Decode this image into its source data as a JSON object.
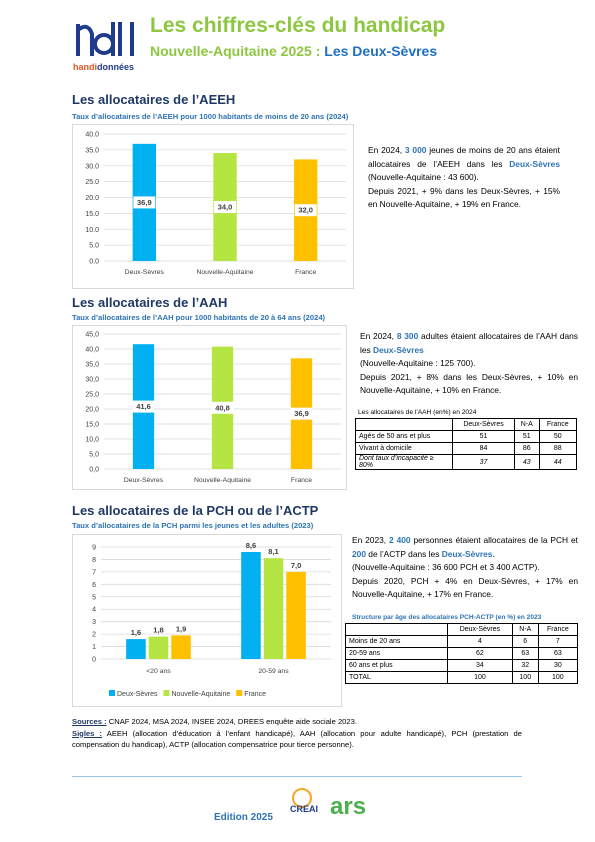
{
  "header": {
    "logo": [
      "handi",
      "données"
    ],
    "title": "Les chiffres-clés du handicap",
    "subtitle": [
      "Nouvelle-Aquitaine 2025 : ",
      "Les Deux-Sèvres"
    ]
  },
  "sections": [
    {
      "heading": "Les allocataires de l’AEEH",
      "text": [
        "En 2024, ",
        "3 000",
        " jeunes de moins de 20 ans étaient allocataires de l’AEEH dans les ",
        "Deux-Sèvres",
        " (Nouvelle-Aquitaine : 43 600).",
        "Depuis 2021, + 9% dans les Deux-Sèvres, + 15% en Nouvelle-Aquitaine, + 19% en France."
      ]
    },
    {
      "heading": "Les allocataires de l’AAH",
      "text": [
        "En 2024, ",
        "8 300",
        " adultes étaient allocataires de l’AAH dans les ",
        "Deux-Sèvres",
        "(Nouvelle-Aquitaine : 125 700).",
        "Depuis 2021, + 8% dans les Deux-Sèvres, + 10% en Nouvelle-Aquitaine, + 10% en France."
      ]
    },
    {
      "heading": "Les allocataires de la PCH ou de l’ACTP",
      "text": [
        "En 2023, ",
        "2 400",
        " personnes étaient allocataires de la PCH et ",
        "200",
        " de l’ACTP dans les ",
        "Deux-Sèvres.",
        "(Nouvelle-Aquitaine : 36 600 PCH et 3 400 ACTP).",
        "Depuis 2020, PCH + 4% en Deux-Sèvres, + 17% en Nouvelle-Aquitaine, + 17% en France."
      ]
    }
  ],
  "chart_data": [
    {
      "type": "bar",
      "title": "Taux d’allocataires de l’AEEH pour 1000 habitants de moins de 20 ans (2024)",
      "categories": [
        "Deux-Sèvres",
        "Nouvelle-Aquitaine",
        "France"
      ],
      "values": [
        36.9,
        34.0,
        32.0
      ],
      "value_labels": [
        "36,9",
        "34,0",
        "32,0"
      ],
      "colors": [
        "#00b0f0",
        "#b5e543",
        "#ffc000"
      ],
      "ylim": [
        0,
        40
      ],
      "yticks": [
        {
          "value": 0,
          "label": "0.0"
        },
        {
          "value": 5,
          "label": "5.0"
        },
        {
          "value": 10,
          "label": "10.0"
        },
        {
          "value": 15,
          "label": "15.0"
        },
        {
          "value": 20,
          "label": "20.0"
        },
        {
          "value": 25,
          "label": "25.0"
        },
        {
          "value": 30,
          "label": "30.0"
        },
        {
          "value": 35,
          "label": "35.0"
        },
        {
          "value": 40,
          "label": "40.0"
        }
      ],
      "grid": true
    },
    {
      "type": "bar",
      "title": "Taux d’allocataires de l’AAH pour 1000 habitants de 20 à 64 ans (2024)",
      "categories": [
        "Deux-Sèvres",
        "Nouvelle-Aquitaine",
        "France"
      ],
      "values": [
        41.6,
        40.8,
        36.9
      ],
      "value_labels": [
        "41,6",
        "40,8",
        "36,9"
      ],
      "colors": [
        "#00b0f0",
        "#b5e543",
        "#ffc000"
      ],
      "ylim": [
        0,
        45
      ],
      "yticks": [
        {
          "value": 0,
          "label": "0,0"
        },
        {
          "value": 5,
          "label": "5,0"
        },
        {
          "value": 10,
          "label": "10,0"
        },
        {
          "value": 15,
          "label": "15,0"
        },
        {
          "value": 20,
          "label": "20,0"
        },
        {
          "value": 25,
          "label": "25,0"
        },
        {
          "value": 30,
          "label": "30,0"
        },
        {
          "value": 35,
          "label": "35,0"
        },
        {
          "value": 40,
          "label": "40,0"
        },
        {
          "value": 45,
          "label": "45,0"
        }
      ],
      "grid": true
    },
    {
      "type": "bar",
      "title": "Taux d’allocataires de la PCH parmi les jeunes et les adultes (2023)",
      "categories": [
        "<20 ans",
        "20-59 ans"
      ],
      "series": [
        {
          "name": "Deux-Sèvres",
          "color": "#00b0f0",
          "values": [
            1.6,
            8.6
          ],
          "value_labels": [
            "1,6",
            "8,6"
          ]
        },
        {
          "name": "Nouvelle-Aquitaine",
          "color": "#b5e543",
          "values": [
            1.8,
            8.1
          ],
          "value_labels": [
            "1,8",
            "8,1"
          ]
        },
        {
          "name": "France",
          "color": "#ffc000",
          "values": [
            1.9,
            7.0
          ],
          "value_labels": [
            "1,9",
            "7,0"
          ]
        }
      ],
      "ylim": [
        0,
        9
      ],
      "yticks": [
        0,
        1,
        2,
        3,
        4,
        5,
        6,
        7,
        8,
        9
      ],
      "grid": true,
      "legend": "bottom"
    }
  ],
  "tables": [
    {
      "title": "Les allocataires de l’AAH (en%) en 2024",
      "columns": [
        "Deux-Sèvres",
        "N-A",
        "France"
      ],
      "rows": [
        {
          "label": "Agés de 50 ans et plus",
          "values": [
            51,
            51,
            50
          ]
        },
        {
          "label": "Vivant à domicile",
          "values": [
            84,
            86,
            88
          ]
        },
        {
          "label": "Dont taux d’incapacité ≥ 80%",
          "values": [
            37,
            43,
            44
          ]
        }
      ]
    },
    {
      "title": "Structure par âge des allocataires PCH-ACTP (en %) en 2023",
      "columns": [
        "Deux-Sèvres",
        "N-A",
        "France"
      ],
      "rows": [
        {
          "label": "Moins de 20 ans",
          "values": [
            4,
            6,
            7
          ]
        },
        {
          "label": "20-59 ans",
          "values": [
            62,
            63,
            63
          ]
        },
        {
          "label": "60 ans et plus",
          "values": [
            34,
            32,
            30
          ]
        },
        {
          "label": "TOTAL",
          "values": [
            100,
            100,
            100
          ]
        }
      ]
    }
  ],
  "sources": {
    "sources_label": "Sources :",
    "sources": "CNAF 2024, MSA 2024, INSEE 2024, DREES enquête aide sociale 2023.",
    "sigles_label": "Sigles :",
    "sigles": "AEEH (allocation d’éducation à l’enfant handicapé), AAH (allocation pour adulte handicapé), PCH (prestation de compensation du handicap), ACTP (allocation compensatrice pour tierce personne)."
  },
  "footer": {
    "logo": [
      "CREAI",
      "ars"
    ],
    "edition": "Edition 2025"
  }
}
